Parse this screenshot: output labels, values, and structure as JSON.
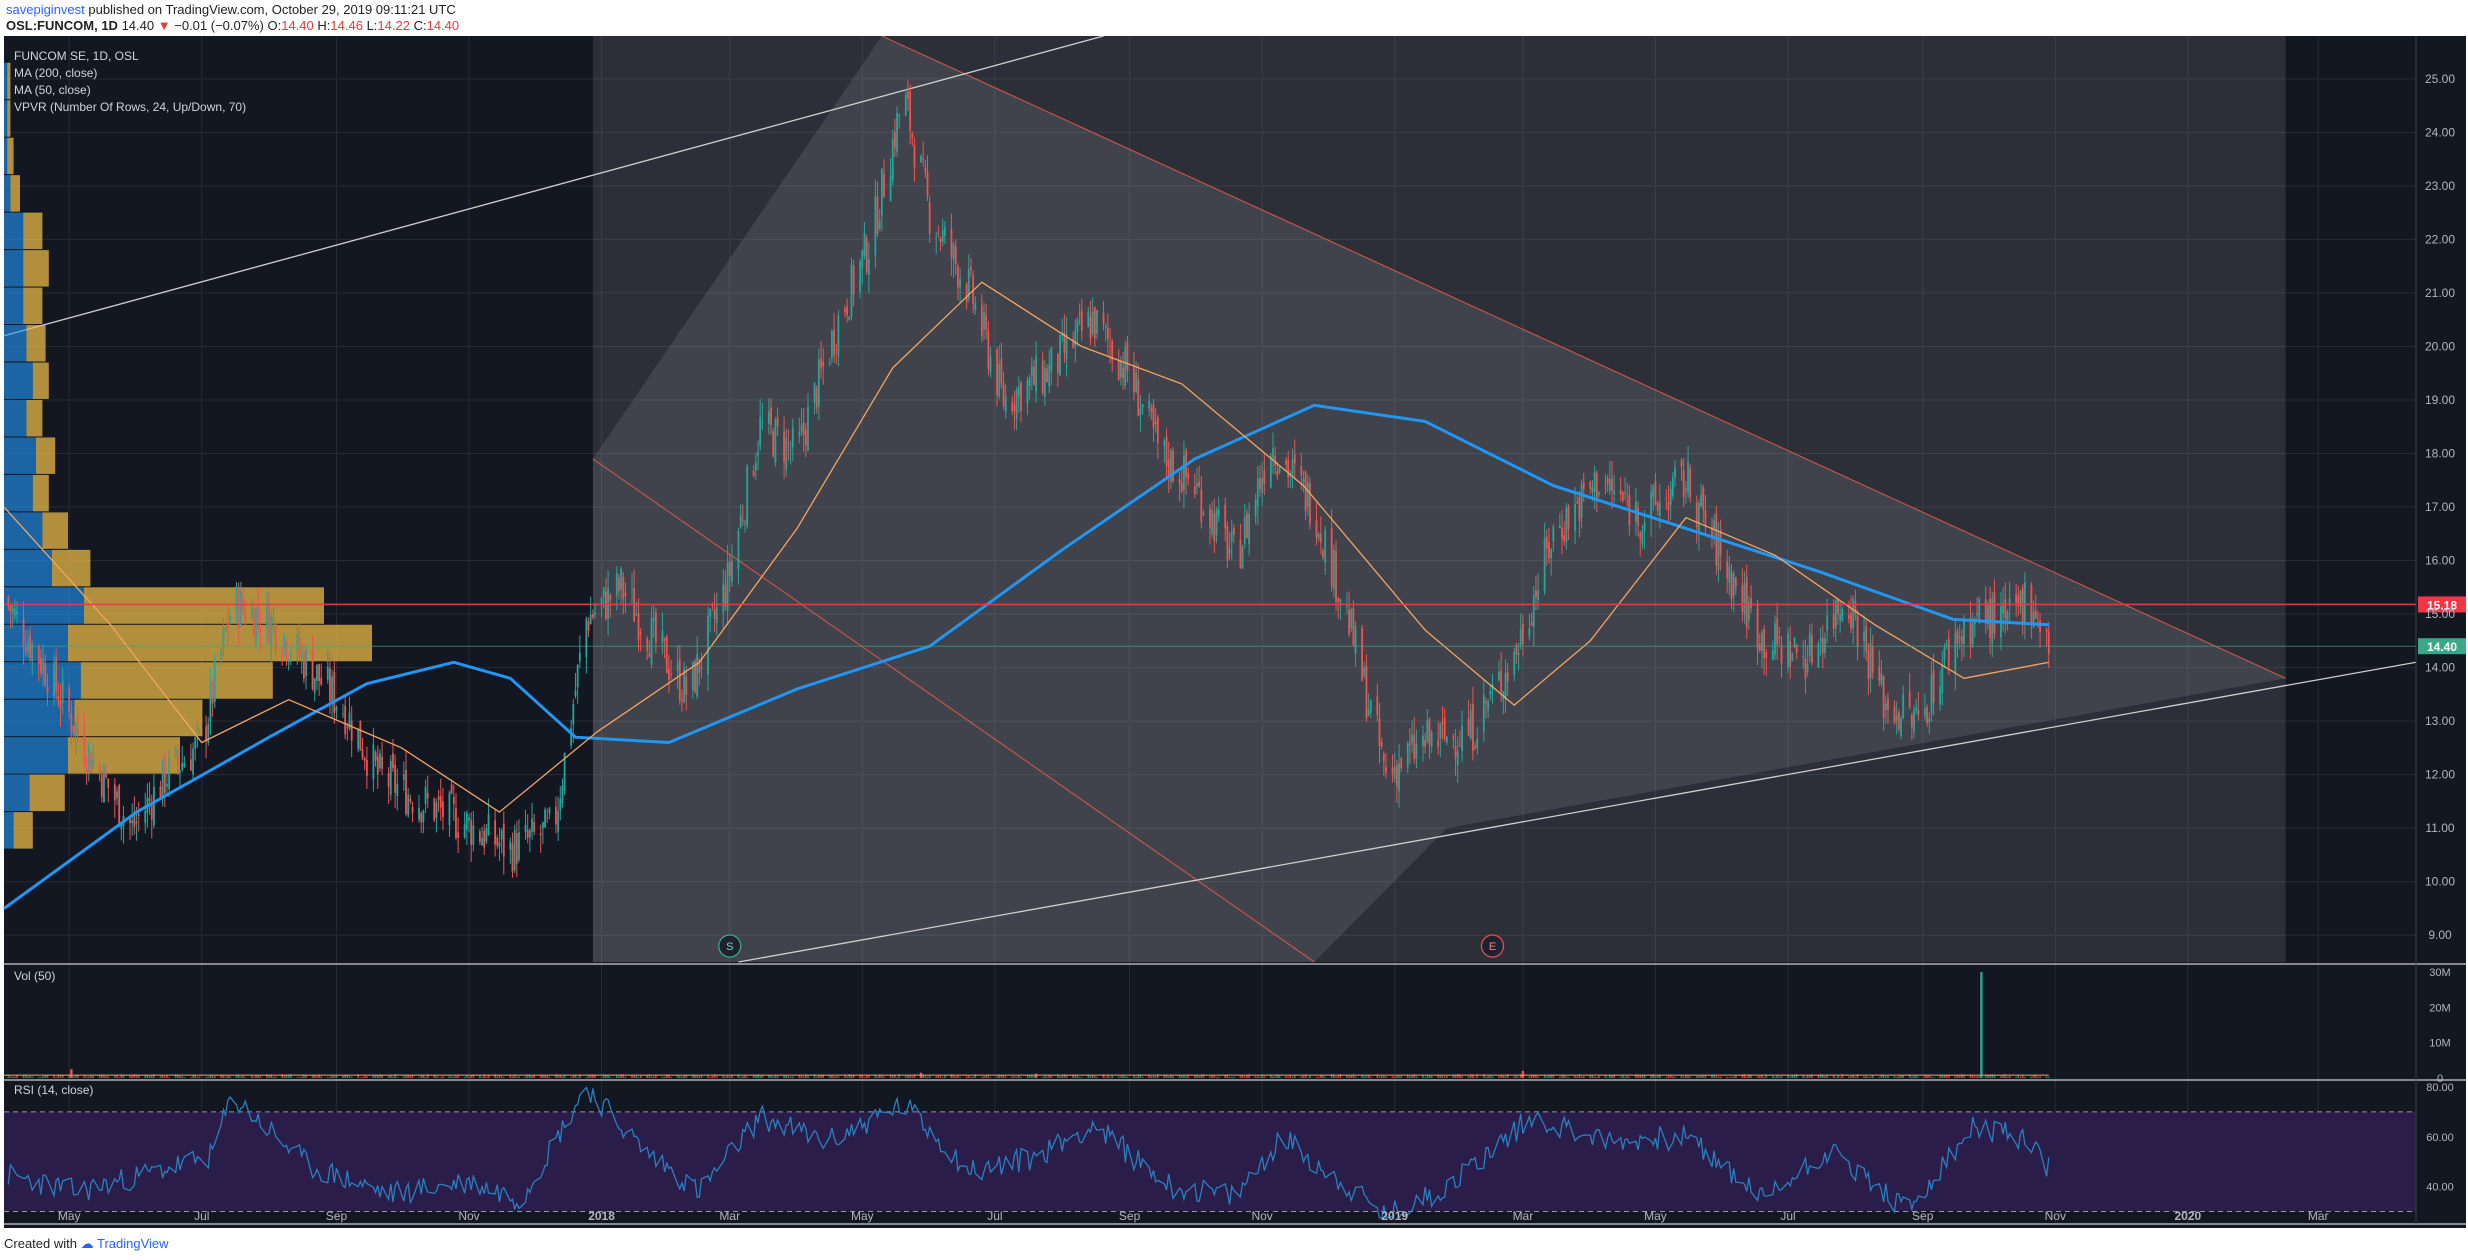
{
  "header": {
    "user": "savepiginvest",
    "published": "published on TradingView.com, October 29, 2019 09:11:21 UTC",
    "symbol": "OSL:FUNCOM, 1D",
    "last": "14.40",
    "change": "−0.01 (−0.07%)",
    "o_label": "O:",
    "o": "14.40",
    "h_label": "H:",
    "h": "14.46",
    "l_label": "L:",
    "l": "14.22",
    "c_label": "C:",
    "c": "14.40"
  },
  "legend": [
    "FUNCOM SE, 1D, OSL",
    "MA (200, close)",
    "MA (50, close)",
    "VPVR (Number Of Rows, 24, Up/Down, 70)"
  ],
  "footer": {
    "created": "Created with",
    "brand": "TradingView"
  },
  "colors": {
    "background": "#131722",
    "up": "#26a69a",
    "down": "#ef5350",
    "ma200": "#2196f3",
    "ma50": "#f4a460",
    "red_line": "#f23645",
    "price_tag": "#3aa888",
    "rsi_line": "#2a7fbf",
    "rsi_band": "#2b1d4a"
  },
  "chart_data": [
    {
      "type": "candlestick",
      "title": "FUNCOM SE, 1D, OSL",
      "ylim": [
        8.5,
        25.8
      ],
      "y_ticks": [
        "25.00",
        "24.00",
        "23.00",
        "22.00",
        "21.00",
        "20.00",
        "19.00",
        "18.00",
        "17.00",
        "16.00",
        "15.00",
        "14.00",
        "13.00",
        "12.00",
        "11.00",
        "10.00",
        "9.00"
      ],
      "x_ticks": [
        "May",
        "Jul",
        "Sep",
        "Nov",
        "2018",
        "Mar",
        "May",
        "Jul",
        "Sep",
        "Nov",
        "2019",
        "Mar",
        "May",
        "Jul",
        "Sep",
        "Nov",
        "2020",
        "Mar"
      ],
      "x_range": [
        "2017-04-01",
        "2020-04-15"
      ],
      "close_points": [
        [
          "2017-04-01",
          15.3
        ],
        [
          "2017-04-20",
          14.0
        ],
        [
          "2017-05-10",
          12.4
        ],
        [
          "2017-05-30",
          11.0
        ],
        [
          "2017-06-15",
          12.0
        ],
        [
          "2017-07-01",
          12.6
        ],
        [
          "2017-07-15",
          15.2
        ],
        [
          "2017-08-01",
          14.9
        ],
        [
          "2017-08-20",
          14.0
        ],
        [
          "2017-09-05",
          13.2
        ],
        [
          "2017-09-20",
          12.0
        ],
        [
          "2017-10-10",
          11.5
        ],
        [
          "2017-10-30",
          11.1
        ],
        [
          "2017-11-20",
          10.6
        ],
        [
          "2017-12-10",
          11.0
        ],
        [
          "2017-12-25",
          14.9
        ],
        [
          "2018-01-10",
          15.5
        ],
        [
          "2018-01-25",
          14.5
        ],
        [
          "2018-02-10",
          13.5
        ],
        [
          "2018-02-28",
          15.6
        ],
        [
          "2018-03-15",
          18.5
        ],
        [
          "2018-04-01",
          18.0
        ],
        [
          "2018-04-20",
          20.5
        ],
        [
          "2018-05-05",
          22.0
        ],
        [
          "2018-05-20",
          24.7
        ],
        [
          "2018-06-01",
          22.5
        ],
        [
          "2018-06-20",
          21.0
        ],
        [
          "2018-07-05",
          19.0
        ],
        [
          "2018-07-25",
          19.5
        ],
        [
          "2018-08-15",
          20.5
        ],
        [
          "2018-09-01",
          19.5
        ],
        [
          "2018-09-15",
          18.0
        ],
        [
          "2018-10-01",
          17.4
        ],
        [
          "2018-10-20",
          16.0
        ],
        [
          "2018-11-05",
          18.2
        ],
        [
          "2018-11-25",
          17.0
        ],
        [
          "2018-12-10",
          15.0
        ],
        [
          "2018-12-28",
          12.0
        ],
        [
          "2019-01-15",
          12.6
        ],
        [
          "2019-02-05",
          12.8
        ],
        [
          "2019-02-25",
          14.2
        ],
        [
          "2019-03-15",
          16.5
        ],
        [
          "2019-04-05",
          17.5
        ],
        [
          "2019-04-25",
          16.8
        ],
        [
          "2019-05-15",
          17.5
        ],
        [
          "2019-06-01",
          16.0
        ],
        [
          "2019-06-20",
          14.5
        ],
        [
          "2019-07-10",
          14.2
        ],
        [
          "2019-07-28",
          15.4
        ],
        [
          "2019-08-15",
          13.3
        ],
        [
          "2019-08-30",
          13.0
        ],
        [
          "2019-09-15",
          14.5
        ],
        [
          "2019-09-28",
          15.0
        ],
        [
          "2019-10-10",
          14.8
        ],
        [
          "2019-10-20",
          15.4
        ],
        [
          "2019-10-29",
          14.4
        ]
      ],
      "ma200_points": [
        [
          "2017-04-01",
          9.5
        ],
        [
          "2017-06-01",
          11.3
        ],
        [
          "2017-08-01",
          12.7
        ],
        [
          "2017-09-15",
          13.7
        ],
        [
          "2017-10-25",
          14.1
        ],
        [
          "2017-11-20",
          13.8
        ],
        [
          "2017-12-20",
          12.7
        ],
        [
          "2018-02-01",
          12.6
        ],
        [
          "2018-04-01",
          13.6
        ],
        [
          "2018-06-01",
          14.4
        ],
        [
          "2018-08-01",
          16.2
        ],
        [
          "2018-10-01",
          17.9
        ],
        [
          "2018-11-25",
          18.9
        ],
        [
          "2019-01-15",
          18.6
        ],
        [
          "2019-03-15",
          17.4
        ],
        [
          "2019-05-15",
          16.6
        ],
        [
          "2019-07-15",
          15.8
        ],
        [
          "2019-09-15",
          14.9
        ],
        [
          "2019-10-29",
          14.8
        ]
      ],
      "ma50_points": [
        [
          "2017-04-01",
          17.0
        ],
        [
          "2017-05-20",
          14.8
        ],
        [
          "2017-07-01",
          12.6
        ],
        [
          "2017-08-10",
          13.4
        ],
        [
          "2017-10-01",
          12.5
        ],
        [
          "2017-11-15",
          11.3
        ],
        [
          "2017-12-30",
          12.8
        ],
        [
          "2018-02-15",
          14.1
        ],
        [
          "2018-04-01",
          16.6
        ],
        [
          "2018-05-15",
          19.6
        ],
        [
          "2018-06-25",
          21.2
        ],
        [
          "2018-08-10",
          20.0
        ],
        [
          "2018-09-25",
          19.3
        ],
        [
          "2018-11-20",
          17.4
        ],
        [
          "2019-01-15",
          14.7
        ],
        [
          "2019-02-25",
          13.3
        ],
        [
          "2019-04-01",
          14.5
        ],
        [
          "2019-05-15",
          16.8
        ],
        [
          "2019-06-25",
          16.1
        ],
        [
          "2019-08-10",
          14.8
        ],
        [
          "2019-09-20",
          13.8
        ],
        [
          "2019-10-29",
          14.1
        ]
      ],
      "horizontal_levels": [
        {
          "price": 15.18,
          "label": "15.18",
          "color": "#f23645"
        },
        {
          "price": 14.4,
          "label": "14.40",
          "color": "#3aa888"
        }
      ],
      "markers": [
        {
          "date": "2018-03-01",
          "label": "S"
        },
        {
          "date": "2019-02-15",
          "label": "E"
        }
      ],
      "vpvr_rows": [
        {
          "lo": 8.5,
          "up": 0.0,
          "down": 0.0
        },
        {
          "lo": 9.2,
          "up": 0.0,
          "down": 0.0
        },
        {
          "lo": 9.9,
          "up": 0.0,
          "down": 0.0
        },
        {
          "lo": 10.6,
          "up": 0.03,
          "down": 0.06
        },
        {
          "lo": 11.3,
          "up": 0.08,
          "down": 0.11
        },
        {
          "lo": 12.0,
          "up": 0.2,
          "down": 0.35
        },
        {
          "lo": 12.7,
          "up": 0.22,
          "down": 0.4
        },
        {
          "lo": 13.4,
          "up": 0.24,
          "down": 0.6
        },
        {
          "lo": 14.1,
          "up": 0.2,
          "down": 0.95
        },
        {
          "lo": 14.8,
          "up": 0.25,
          "down": 0.75
        },
        {
          "lo": 15.5,
          "up": 0.15,
          "down": 0.12
        },
        {
          "lo": 16.2,
          "up": 0.12,
          "down": 0.08
        },
        {
          "lo": 16.9,
          "up": 0.09,
          "down": 0.05
        },
        {
          "lo": 17.6,
          "up": 0.1,
          "down": 0.06
        },
        {
          "lo": 18.3,
          "up": 0.07,
          "down": 0.05
        },
        {
          "lo": 19.0,
          "up": 0.09,
          "down": 0.05
        },
        {
          "lo": 19.7,
          "up": 0.07,
          "down": 0.06
        },
        {
          "lo": 20.4,
          "up": 0.06,
          "down": 0.06
        },
        {
          "lo": 21.1,
          "up": 0.06,
          "down": 0.08
        },
        {
          "lo": 21.8,
          "up": 0.06,
          "down": 0.06
        },
        {
          "lo": 22.5,
          "up": 0.02,
          "down": 0.03
        },
        {
          "lo": 23.2,
          "up": 0.01,
          "down": 0.02
        },
        {
          "lo": 23.9,
          "up": 0.01,
          "down": 0.01
        },
        {
          "lo": 24.6,
          "up": 0.01,
          "down": 0.01
        }
      ]
    },
    {
      "type": "bar",
      "title": "Vol (50)",
      "y_ticks": [
        "30M",
        "20M",
        "10M",
        "0"
      ],
      "ylim": [
        0,
        30000000
      ],
      "notable": [
        {
          "date": "2017-05-02",
          "value": 2500000
        },
        {
          "date": "2018-05-28",
          "value": 1500000
        },
        {
          "date": "2018-07-20",
          "value": 1200000
        },
        {
          "date": "2019-03-01",
          "value": 2000000
        },
        {
          "date": "2019-09-28",
          "value": 30000000
        }
      ],
      "ma_level": 800000
    },
    {
      "type": "line",
      "title": "RSI (14, close)",
      "y_ticks": [
        "80.00",
        "60.00",
        "40.00"
      ],
      "ylim": [
        25,
        82
      ],
      "band": [
        30,
        70
      ],
      "points": [
        [
          "2017-04-01",
          45
        ],
        [
          "2017-05-05",
          38
        ],
        [
          "2017-06-01",
          44
        ],
        [
          "2017-07-05",
          52
        ],
        [
          "2017-07-15",
          76
        ],
        [
          "2017-08-20",
          48
        ],
        [
          "2017-09-25",
          37
        ],
        [
          "2017-11-01",
          42
        ],
        [
          "2017-11-25",
          35
        ],
        [
          "2017-12-25",
          80
        ],
        [
          "2018-01-20",
          55
        ],
        [
          "2018-02-15",
          38
        ],
        [
          "2018-03-15",
          68
        ],
        [
          "2018-04-15",
          58
        ],
        [
          "2018-05-20",
          73
        ],
        [
          "2018-06-20",
          46
        ],
        [
          "2018-07-20",
          52
        ],
        [
          "2018-08-15",
          65
        ],
        [
          "2018-09-20",
          40
        ],
        [
          "2018-10-20",
          36
        ],
        [
          "2018-11-10",
          60
        ],
        [
          "2018-12-28",
          28
        ],
        [
          "2019-01-25",
          40
        ],
        [
          "2019-03-05",
          68
        ],
        [
          "2019-04-10",
          58
        ],
        [
          "2019-05-15",
          60
        ],
        [
          "2019-06-20",
          35
        ],
        [
          "2019-07-20",
          55
        ],
        [
          "2019-08-25",
          30
        ],
        [
          "2019-09-25",
          64
        ],
        [
          "2019-10-15",
          60
        ],
        [
          "2019-10-29",
          48
        ]
      ]
    }
  ]
}
